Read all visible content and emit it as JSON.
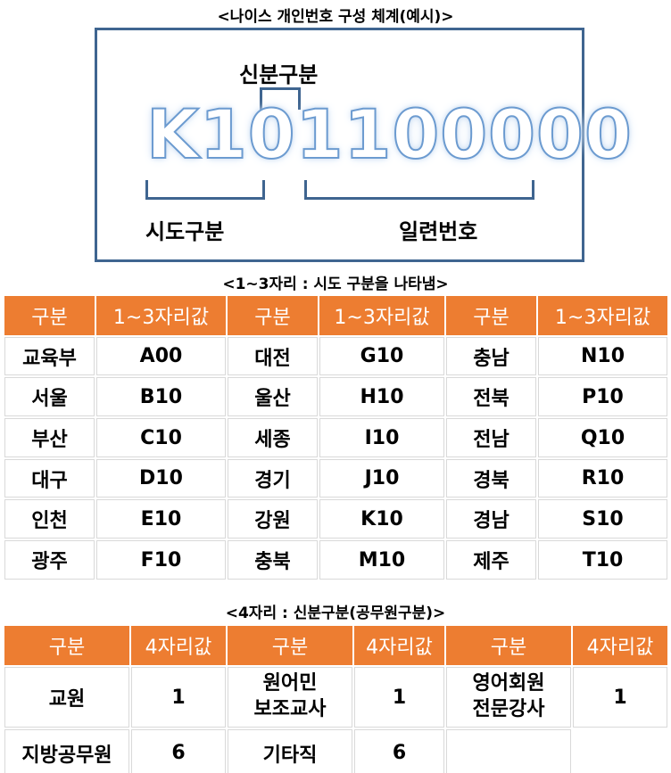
{
  "header_title": "<나이스 개인번호 구성 체계(예시)>",
  "example": {
    "code": "K101100000",
    "label_top": "신분구분",
    "label_left": "시도구분",
    "label_right": "일련번호"
  },
  "region_section": {
    "title": "<1~3자리 : 시도 구분을 나타냄>",
    "header_label": "구분",
    "header_value": "1~3자리값",
    "columns": [
      [
        {
          "name": "교육부",
          "code": "A00"
        },
        {
          "name": "서울",
          "code": "B10"
        },
        {
          "name": "부산",
          "code": "C10"
        },
        {
          "name": "대구",
          "code": "D10"
        },
        {
          "name": "인천",
          "code": "E10"
        },
        {
          "name": "광주",
          "code": "F10"
        }
      ],
      [
        {
          "name": "대전",
          "code": "G10"
        },
        {
          "name": "울산",
          "code": "H10"
        },
        {
          "name": "세종",
          "code": "I10"
        },
        {
          "name": "경기",
          "code": "J10"
        },
        {
          "name": "강원",
          "code": "K10"
        },
        {
          "name": "충북",
          "code": "M10"
        }
      ],
      [
        {
          "name": "충남",
          "code": "N10"
        },
        {
          "name": "전북",
          "code": "P10"
        },
        {
          "name": "전남",
          "code": "Q10"
        },
        {
          "name": "경북",
          "code": "R10"
        },
        {
          "name": "경남",
          "code": "S10"
        },
        {
          "name": "제주",
          "code": "T10"
        }
      ]
    ]
  },
  "status_section": {
    "title": "<4자리 : 신분구분(공무원구분)>",
    "header_label": "구분",
    "header_value": "4자리값",
    "col1": [
      {
        "name": "교원",
        "code": "1"
      },
      {
        "name": "지방공무원",
        "code": "6"
      }
    ],
    "col2": [
      {
        "name_line1": "원어민",
        "name_line2": "보조교사",
        "code": "1"
      },
      {
        "name": "기타직",
        "code": "6"
      }
    ],
    "col3": [
      {
        "name_line1": "영어회원",
        "name_line2": "전문강사",
        "code": "1"
      }
    ]
  }
}
